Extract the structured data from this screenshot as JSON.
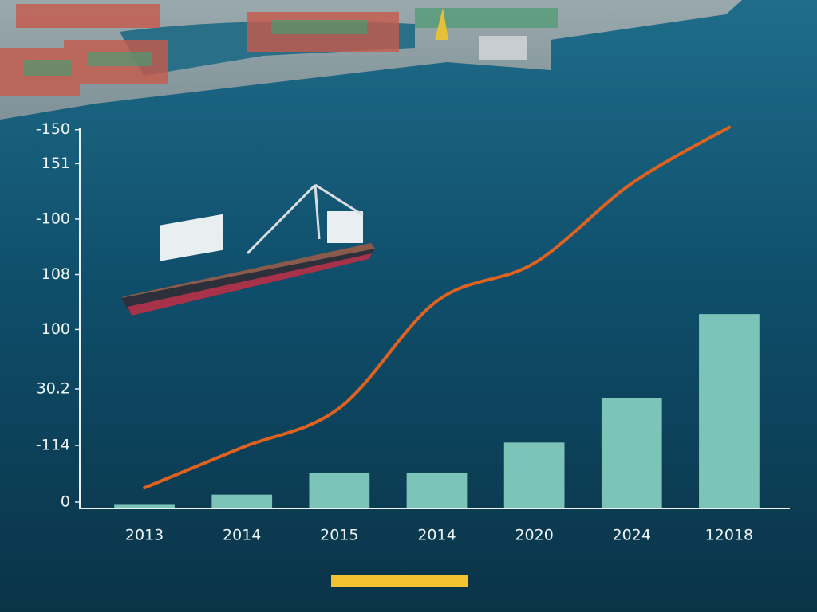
{
  "chart_data": {
    "type": "combo",
    "categories": [
      "2013",
      "2014",
      "2015",
      "2014",
      "2020",
      "2024",
      "12018"
    ],
    "series": [
      {
        "type": "bar",
        "color": "#7cc4b8",
        "values": [
          0.05,
          0.23,
          0.62,
          0.62,
          1.15,
          1.93,
          3.42
        ]
      },
      {
        "type": "line",
        "color": "#e0621e",
        "values": [
          0.35,
          1.06,
          1.76,
          3.65,
          4.32,
          5.73,
          6.72
        ]
      }
    ],
    "ylim": [
      0,
      6.9
    ],
    "yticks": [
      0,
      {
        "value": 1,
        "label": "-114"
      },
      {
        "value": 2,
        "label": "30.2"
      },
      {
        "value": 3.05,
        "label": "100"
      },
      {
        "value": 4.02,
        "label": "108"
      },
      {
        "value": 5,
        "label": "-100"
      },
      {
        "value": 5.98,
        "label": "151"
      },
      {
        "value": 6.58,
        "label": "-150"
      }
    ],
    "grid": false
  }
}
